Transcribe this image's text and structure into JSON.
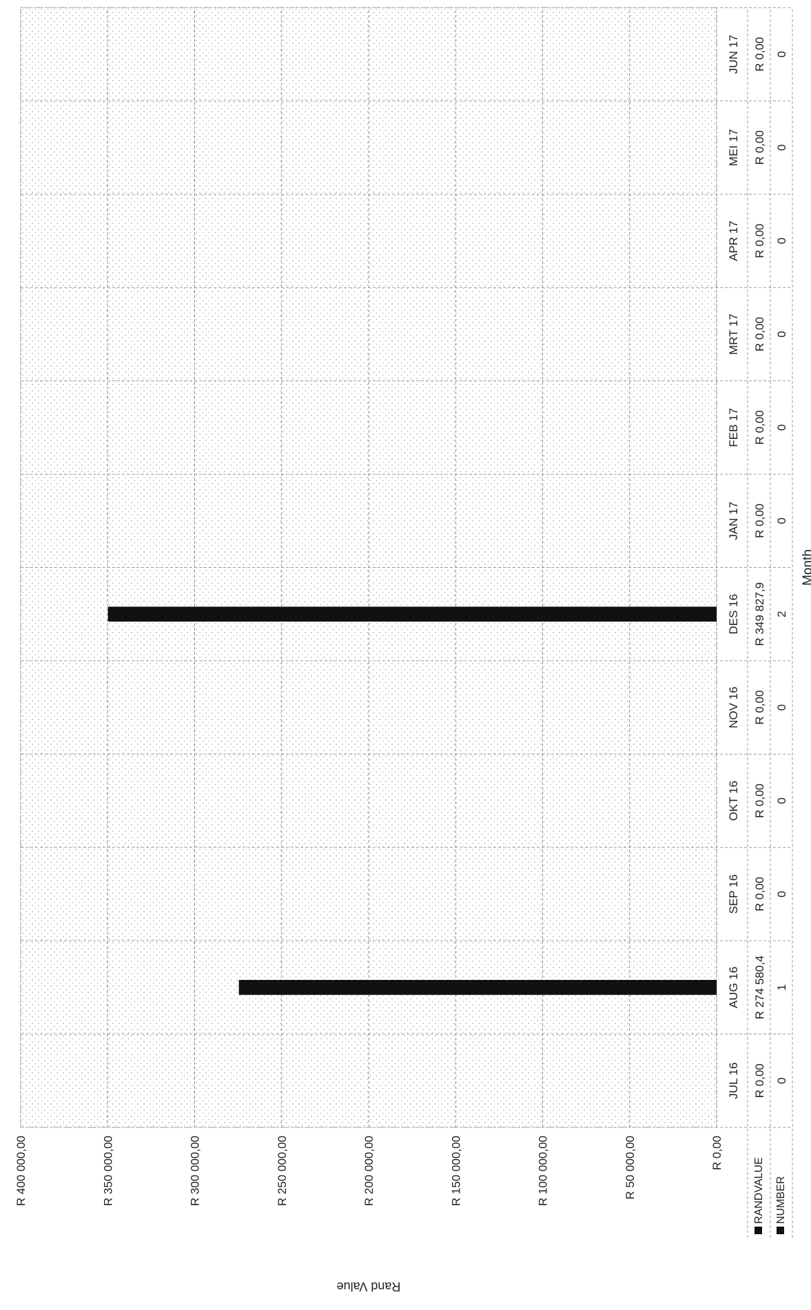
{
  "chart_data": {
    "type": "bar",
    "title": "",
    "xlabel": "Month",
    "ylabel": "Rand Value",
    "ylim": [
      0,
      400000
    ],
    "y_ticks": [
      "R 0,00",
      "R 50 000,00",
      "R 100 000,00",
      "R 150 000,00",
      "R 200 000,00",
      "R 250 000,00",
      "R 300 000,00",
      "R 350 000,00",
      "R 400 000,00"
    ],
    "y_tick_values": [
      0,
      50000,
      100000,
      150000,
      200000,
      250000,
      300000,
      350000,
      400000
    ],
    "categories": [
      "JUL 16",
      "AUG 16",
      "SEP 16",
      "OKT 16",
      "NOV 16",
      "DES 16",
      "JAN 17",
      "FEB 17",
      "MRT 17",
      "APR 17",
      "MEI 17",
      "JUN 17"
    ],
    "series": [
      {
        "name": "RANDVALUE",
        "values": [
          0,
          274580.4,
          0,
          0,
          0,
          349827.9,
          0,
          0,
          0,
          0,
          0,
          0
        ],
        "labels": [
          "R 0,00",
          "R 274 580,4",
          "R 0,00",
          "R 0,00",
          "R 0,00",
          "R 349 827,9",
          "R 0,00",
          "R 0,00",
          "R 0,00",
          "R 0,00",
          "R 0,00",
          "R 0,00"
        ],
        "color": "#111111"
      },
      {
        "name": "NUMBER",
        "values": [
          0,
          1,
          0,
          0,
          0,
          2,
          0,
          0,
          0,
          0,
          0,
          0
        ],
        "labels": [
          "0",
          "1",
          "0",
          "0",
          "0",
          "2",
          "0",
          "0",
          "0",
          "0",
          "0",
          "0"
        ],
        "color": "#111111"
      }
    ],
    "grid": true,
    "orientation": "rotated-90",
    "data_table": true
  }
}
